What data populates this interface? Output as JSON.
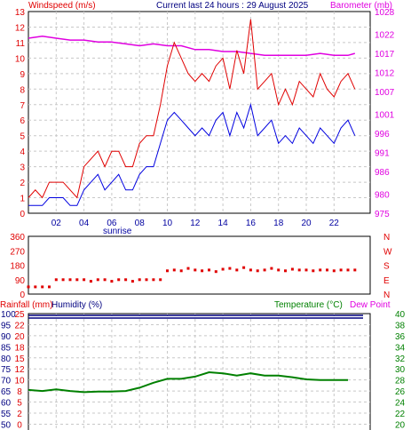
{
  "header": {
    "left_title": "Windspeed (m/s)",
    "center_title": "Current last 24 hours : 29 August 2025",
    "right_title": "Barometer (mb)"
  },
  "colors": {
    "windspeed_gust": "#e00000",
    "windspeed_avg": "#0000e0",
    "barometer": "#e000e0",
    "direction": "#e00000",
    "humidity": "#000080",
    "temperature": "#008000",
    "dewpoint": "#e000e0",
    "rainfall": "#e00000",
    "grid": "#c8c8c8",
    "axis_text_blue": "#0000a0"
  },
  "chart_data": [
    {
      "type": "line",
      "x_ticks": [
        "02",
        "04",
        "06",
        "08",
        "10",
        "12",
        "14",
        "16",
        "18",
        "20",
        "22"
      ],
      "x_annotation": "sunrise",
      "left_axis": {
        "label": "Windspeed (m/s)",
        "ticks": [
          0,
          1,
          2,
          3,
          4,
          5,
          6,
          7,
          8,
          9,
          10,
          11,
          12,
          13
        ],
        "ylim": [
          0,
          13
        ]
      },
      "right_axis": {
        "label": "Barometer (mb)",
        "ticks": [
          975,
          980,
          986,
          991,
          996,
          1001,
          1007,
          1012,
          1017,
          1022,
          1028
        ],
        "ylim": [
          975,
          1028
        ]
      },
      "series": [
        {
          "name": "gust",
          "axis": "left",
          "x": [
            0,
            0.5,
            1,
            1.5,
            2,
            2.5,
            3,
            3.5,
            4,
            4.5,
            5,
            5.5,
            6,
            6.5,
            7,
            7.5,
            8,
            8.5,
            9,
            9.5,
            10,
            10.5,
            11,
            11.5,
            12,
            12.5,
            13,
            13.5,
            14,
            14.5,
            15,
            15.5,
            16,
            16.5,
            17,
            17.5,
            18,
            18.5,
            19,
            19.5,
            20,
            20.5,
            21,
            21.5,
            22,
            22.5,
            23,
            23.5
          ],
          "values": [
            1,
            1.5,
            1,
            2,
            2,
            2,
            1.5,
            1,
            3,
            3.5,
            4,
            3,
            4,
            4,
            3,
            3,
            4.5,
            5,
            5,
            7,
            9.5,
            11,
            10,
            9,
            8.5,
            9,
            8.5,
            9.5,
            10,
            8,
            10.5,
            9,
            12.5,
            8,
            8.5,
            9,
            7,
            8,
            7,
            8.5,
            8,
            7.5,
            9,
            8,
            7.5,
            8.5,
            9,
            8
          ]
        },
        {
          "name": "average",
          "axis": "left",
          "x": [
            0,
            0.5,
            1,
            1.5,
            2,
            2.5,
            3,
            3.5,
            4,
            4.5,
            5,
            5.5,
            6,
            6.5,
            7,
            7.5,
            8,
            8.5,
            9,
            9.5,
            10,
            10.5,
            11,
            11.5,
            12,
            12.5,
            13,
            13.5,
            14,
            14.5,
            15,
            15.5,
            16,
            16.5,
            17,
            17.5,
            18,
            18.5,
            19,
            19.5,
            20,
            20.5,
            21,
            21.5,
            22,
            22.5,
            23,
            23.5
          ],
          "values": [
            0.5,
            0.5,
            0.5,
            1,
            1,
            1,
            0.5,
            0.5,
            1.5,
            2,
            2.5,
            1.5,
            2,
            2.5,
            1.5,
            1.5,
            2.5,
            3,
            3,
            4.5,
            6,
            6.5,
            6,
            5.5,
            5,
            5.5,
            5,
            6,
            6.5,
            5,
            6.5,
            5.5,
            7,
            5,
            5.5,
            6,
            4.5,
            5,
            4.5,
            5.5,
            5,
            4.5,
            5.5,
            5,
            4.5,
            5.5,
            6,
            5
          ]
        },
        {
          "name": "barometer",
          "axis": "right",
          "x": [
            0,
            1,
            2,
            3,
            4,
            5,
            6,
            7,
            8,
            9,
            10,
            11,
            12,
            13,
            14,
            15,
            16,
            17,
            18,
            19,
            20,
            21,
            22,
            23,
            23.5
          ],
          "values": [
            1021,
            1021.5,
            1021,
            1020.5,
            1020.5,
            1020,
            1020,
            1019.5,
            1019,
            1019.5,
            1019,
            1019,
            1018,
            1018,
            1017.5,
            1017.5,
            1017,
            1016.5,
            1016.5,
            1016.5,
            1016.5,
            1017,
            1016.5,
            1016.5,
            1017
          ]
        }
      ]
    },
    {
      "type": "scatter",
      "left_axis": {
        "ticks": [
          0,
          90,
          180,
          270,
          360
        ],
        "ylim": [
          0,
          360
        ]
      },
      "right_axis": {
        "ticks": [
          "N",
          "W",
          "S",
          "E",
          "N"
        ]
      },
      "series": [
        {
          "name": "direction",
          "x": [
            0,
            0.5,
            1,
            1.5,
            2,
            2.5,
            3,
            3.5,
            4,
            4.5,
            5,
            5.5,
            6,
            6.5,
            7,
            7.5,
            8,
            8.5,
            9,
            9.5,
            10,
            10.5,
            11,
            11.5,
            12,
            12.5,
            13,
            13.5,
            14,
            14.5,
            15,
            15.5,
            16,
            16.5,
            17,
            17.5,
            18,
            18.5,
            19,
            19.5,
            20,
            20.5,
            21,
            21.5,
            22,
            22.5,
            23,
            23.5
          ],
          "values": [
            45,
            45,
            45,
            45,
            90,
            90,
            90,
            90,
            90,
            80,
            90,
            90,
            80,
            90,
            90,
            80,
            90,
            90,
            90,
            90,
            145,
            150,
            145,
            160,
            150,
            145,
            150,
            140,
            155,
            160,
            150,
            165,
            150,
            145,
            150,
            160,
            150,
            145,
            155,
            150,
            150,
            145,
            150,
            150,
            145,
            150,
            150,
            150
          ]
        }
      ]
    },
    {
      "type": "line",
      "left_axis": {
        "label_rainfall": "Rainfall (mm)",
        "label_humidity": "Humidity (%)",
        "humidity_ticks": [
          100,
          95,
          90,
          85,
          80,
          75,
          70,
          65,
          60,
          55,
          50
        ],
        "rainfall_ticks": [
          25,
          22,
          20,
          18,
          15,
          12,
          10,
          8,
          5,
          2,
          0
        ]
      },
      "right_axis": {
        "label_temperature": "Temperature (°C)",
        "label_dewpoint": "Dew Point",
        "ticks": [
          40,
          38,
          36,
          34,
          32,
          30,
          28,
          26,
          24,
          22,
          20
        ],
        "ylim": [
          20,
          40
        ]
      },
      "series": [
        {
          "name": "humidity",
          "axis": "left",
          "x": [
            0,
            23.5
          ],
          "values": [
            99,
            99
          ]
        },
        {
          "name": "temperature",
          "axis": "right",
          "x": [
            0,
            1,
            2,
            3,
            4,
            5,
            6,
            7,
            8,
            9,
            10,
            11,
            12,
            13,
            14,
            15,
            16,
            17,
            18,
            19,
            20,
            21,
            22,
            23
          ],
          "values": [
            26.2,
            26,
            26.3,
            26,
            25.8,
            25.9,
            25.9,
            26,
            26.6,
            27.5,
            28.2,
            28.2,
            28.6,
            29.4,
            29.2,
            28.8,
            29.2,
            28.8,
            28.8,
            28.5,
            28.1,
            28,
            28,
            28
          ]
        }
      ]
    }
  ]
}
